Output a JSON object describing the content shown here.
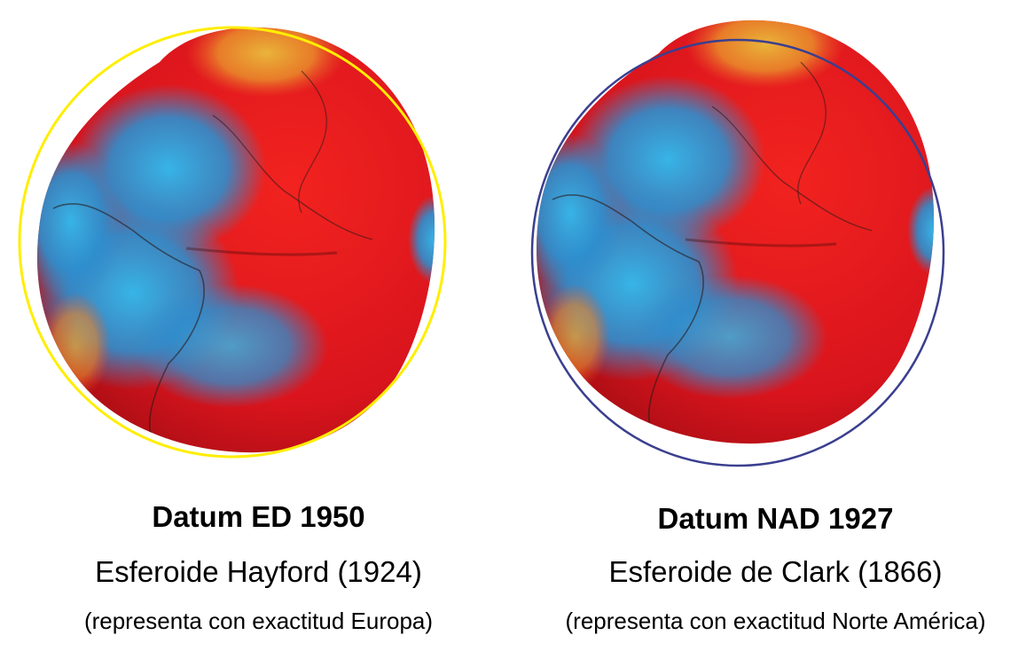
{
  "panels": [
    {
      "datum_title": "Datum ED 1950",
      "spheroid": "Esferoide Hayford (1924)",
      "note": "(representa con exactitud Europa)",
      "ellipse_color": "#ffee00"
    },
    {
      "datum_title": "Datum NAD 1927",
      "spheroid": "Esferoide de Clark (1866)",
      "note": "(representa con exactitud Norte América)",
      "ellipse_color": "#3a3f8f"
    }
  ],
  "colors": {
    "geoid_high": "#e8161e",
    "geoid_low": "#2b8fcf",
    "geoid_peak": "#e8a020"
  }
}
